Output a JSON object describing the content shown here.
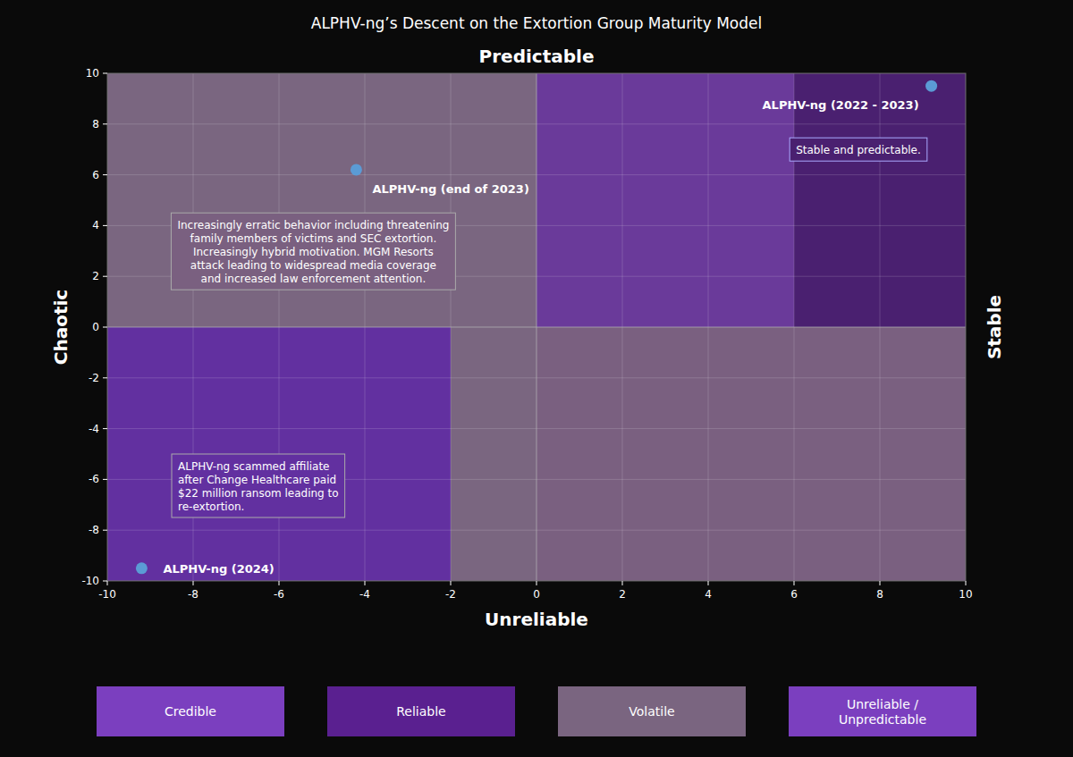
{
  "chart_data": {
    "type": "scatter",
    "title": "ALPHV-ng’s Descent on the Extortion Group Maturity Model",
    "x": [
      9.2,
      -4.2,
      -9.2
    ],
    "values": [
      9.5,
      6.2,
      -9.5
    ],
    "point_labels": [
      "ALPHV-ng (2022 - 2023)",
      "ALPHV-ng (end of 2023)",
      "ALPHV-ng (2024)"
    ],
    "color": "#5b9bd5",
    "xlim": [
      -10,
      10
    ],
    "ylim": [
      -10,
      10
    ],
    "xticks": [
      -10,
      -8,
      -6,
      -4,
      -2,
      0,
      2,
      4,
      6,
      8,
      10
    ],
    "yticks": [
      -10,
      -8,
      -6,
      -4,
      -2,
      0,
      2,
      4,
      6,
      8,
      10
    ],
    "grid": true,
    "direction_labels": {
      "top": "Predictable",
      "bottom": "Unreliable",
      "left": "Chaotic",
      "right": "Stable"
    },
    "regions": [
      {
        "x": [
          -10,
          0
        ],
        "y": [
          0,
          10
        ],
        "color": "#7a6680"
      },
      {
        "x": [
          0,
          6
        ],
        "y": [
          0,
          10
        ],
        "color": "#6a3a9a"
      },
      {
        "x": [
          6,
          10
        ],
        "y": [
          0,
          10
        ],
        "color": "#4a2070"
      },
      {
        "x": [
          -10,
          -2
        ],
        "y": [
          -10,
          0
        ],
        "color": "#6230a0"
      },
      {
        "x": [
          -2,
          0
        ],
        "y": [
          -10,
          0
        ],
        "color": "#7a6680"
      },
      {
        "x": [
          0,
          10
        ],
        "y": [
          -10,
          0
        ],
        "color": "#7a6080"
      }
    ],
    "annotations": [
      {
        "text": "Stable and predictable.",
        "x": 7.5,
        "y": 7.0,
        "anchor": "center",
        "align": "center",
        "box_color": "#4a2070",
        "edge_color": "#aaaaff"
      },
      {
        "text": "Increasingly erratic behavior including threatening\nfamily members of victims and SEC extortion.\nIncreasingly hybrid motivation. MGM Resorts\nattack leading to widespread media coverage\nand increased law enforcement attention.",
        "x": -5.2,
        "y": 4.5,
        "anchor": "top",
        "align": "center",
        "box_color": "#7a6080",
        "edge_color": "#aaaaaa"
      },
      {
        "text": "ALPHV-ng scammed affiliate\nafter Change Healthcare paid\n$22 million ransom leading to\nre-extortion.",
        "x": -8.5,
        "y": -5.0,
        "anchor": "top-left",
        "align": "left",
        "box_color": "#6230a0",
        "edge_color": "#aaaaaa"
      }
    ],
    "legend_items": [
      {
        "label": "Credible",
        "color": "#7b3fbf"
      },
      {
        "label": "Reliable",
        "color": "#5a2090"
      },
      {
        "label": "Volatile",
        "color": "#7a6580"
      },
      {
        "label": "Unreliable /\nUnpredictable",
        "color": "#7b3fbf"
      }
    ]
  }
}
